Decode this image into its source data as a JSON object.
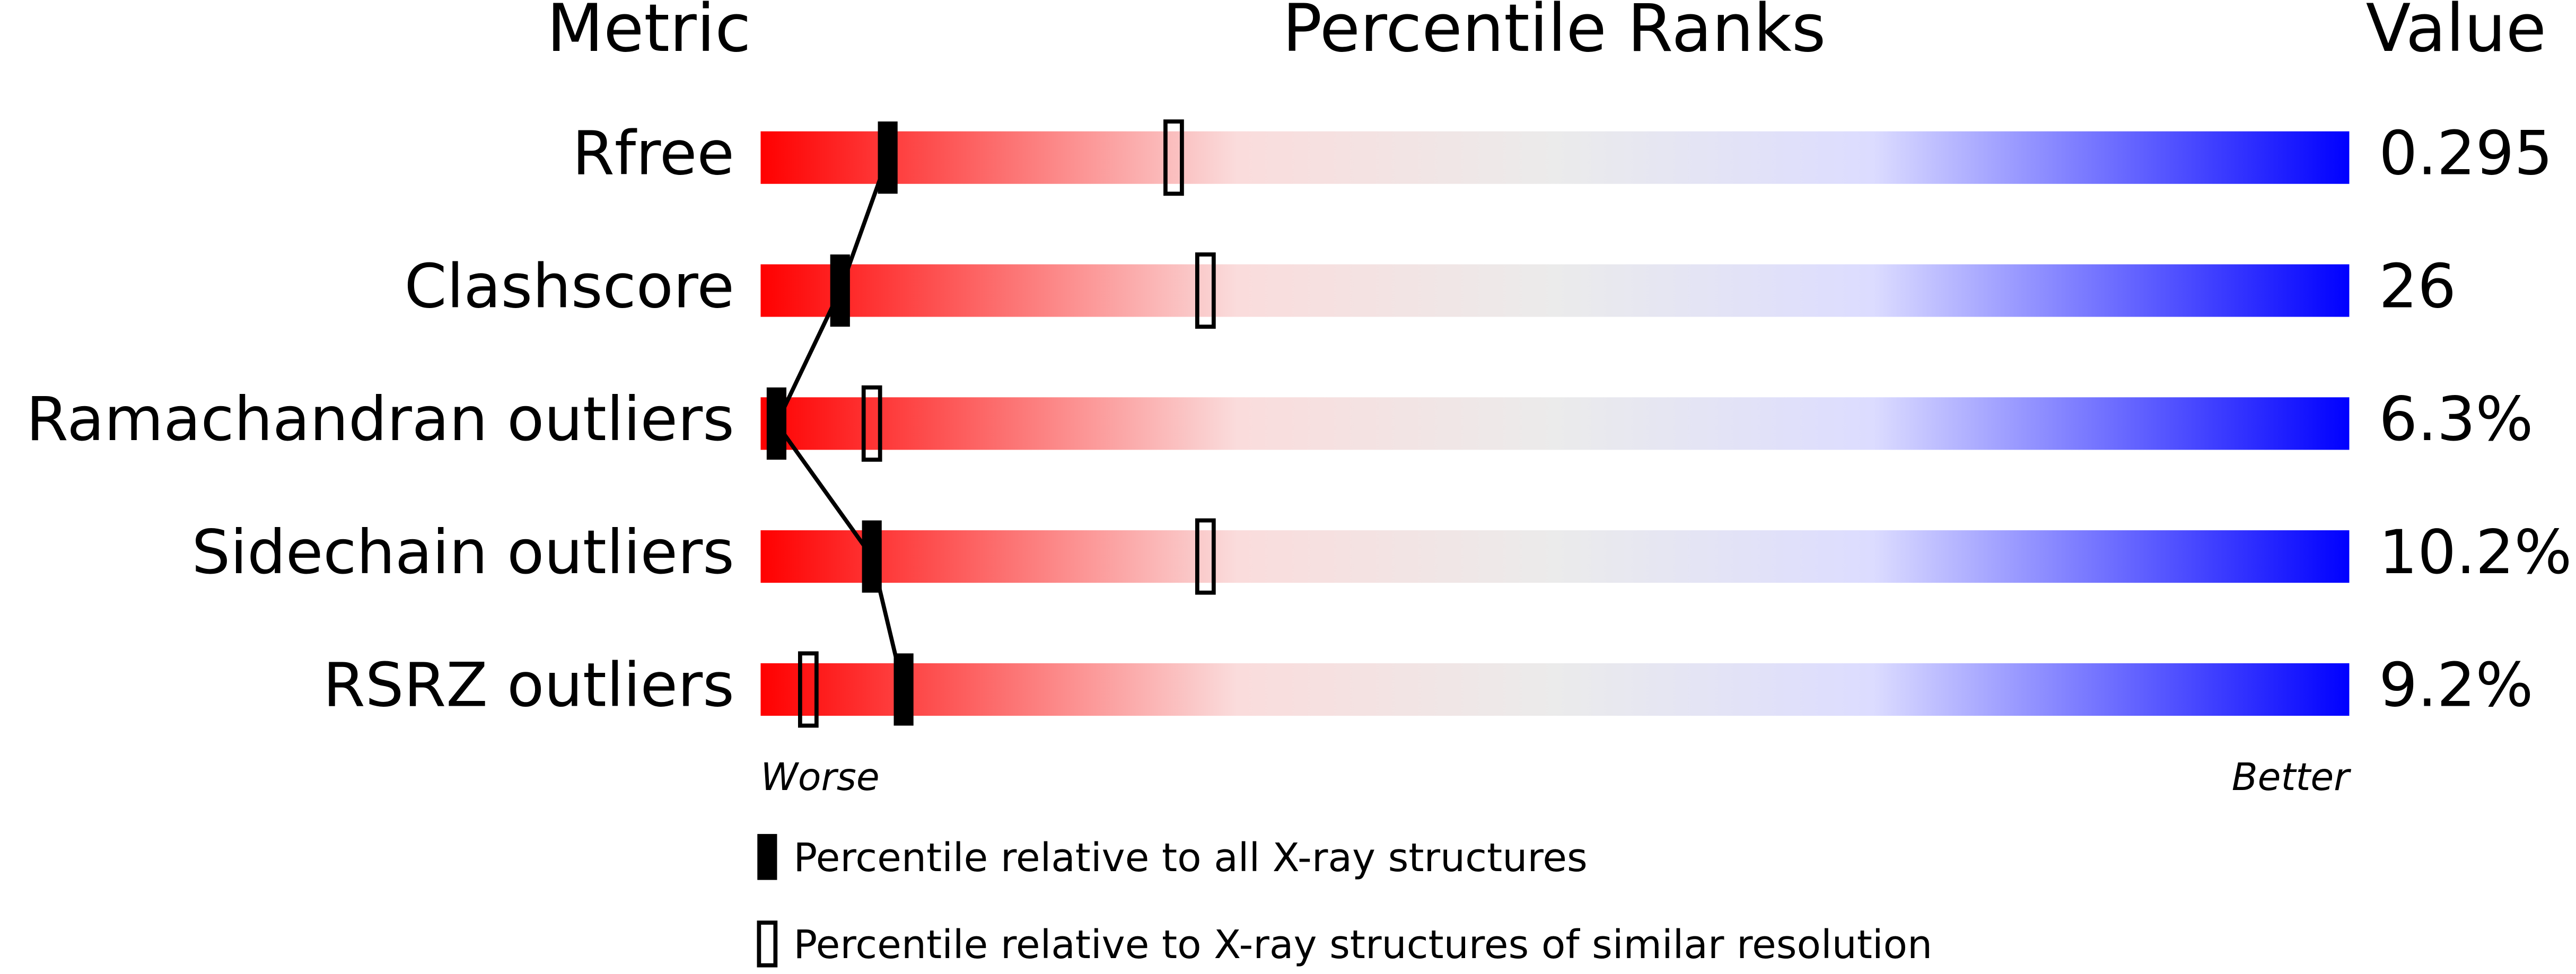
{
  "chart_data": {
    "type": "percentile",
    "headers": [
      "Metric",
      "Percentile Ranks",
      "Value"
    ],
    "categories": [
      "Rfree",
      "Clashscore",
      "Ramachandran outliers",
      "Sidechain outliers",
      "RSRZ outliers"
    ],
    "metric_values": [
      "0.295",
      "26",
      "6.3%",
      "10.2%",
      "9.2%"
    ],
    "xlim": [
      0,
      100
    ],
    "worse_label": "Worse",
    "better_label": "Better",
    "gradient": [
      "#ff0000",
      "#fadcdc",
      "#ebebeb",
      "#dcdcff",
      "#0000ff"
    ],
    "series": [
      {
        "name": "Percentile relative to all X-ray structures",
        "color": "#000000",
        "filled": true,
        "values": [
          8,
          5,
          1,
          7,
          9
        ]
      },
      {
        "name": "Percentile relative to X-ray structures of similar resolution",
        "color": "#000000",
        "filled": false,
        "values": [
          26,
          28,
          7,
          28,
          3
        ]
      }
    ]
  }
}
